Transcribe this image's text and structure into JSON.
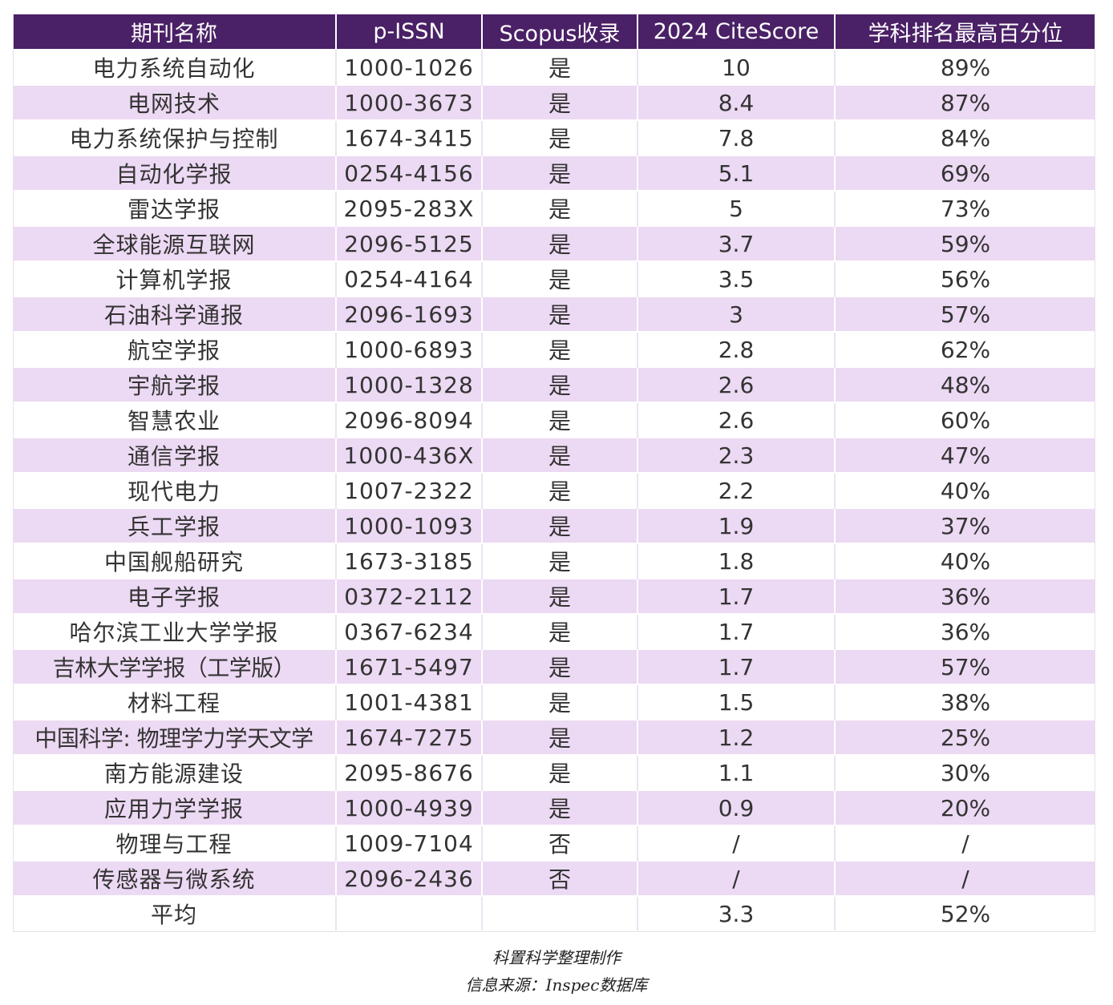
{
  "table": {
    "headers": [
      "期刊名称",
      "p-ISSN",
      "Scopus收录",
      "2024 CiteScore",
      "学科排名最高百分位"
    ],
    "rows": [
      [
        "电力系统自动化",
        "1000-1026",
        "是",
        "10",
        "89%"
      ],
      [
        "电网技术",
        "1000-3673",
        "是",
        "8.4",
        "87%"
      ],
      [
        "电力系统保护与控制",
        "1674-3415",
        "是",
        "7.8",
        "84%"
      ],
      [
        "自动化学报",
        "0254-4156",
        "是",
        "5.1",
        "69%"
      ],
      [
        "雷达学报",
        "2095-283X",
        "是",
        "5",
        "73%"
      ],
      [
        "全球能源互联网",
        "2096-5125",
        "是",
        "3.7",
        "59%"
      ],
      [
        "计算机学报",
        "0254-4164",
        "是",
        "3.5",
        "56%"
      ],
      [
        "石油科学通报",
        "2096-1693",
        "是",
        "3",
        "57%"
      ],
      [
        "航空学报",
        "1000-6893",
        "是",
        "2.8",
        "62%"
      ],
      [
        "宇航学报",
        "1000-1328",
        "是",
        "2.6",
        "48%"
      ],
      [
        "智慧农业",
        "2096-8094",
        "是",
        "2.6",
        "60%"
      ],
      [
        "通信学报",
        "1000-436X",
        "是",
        "2.3",
        "47%"
      ],
      [
        "现代电力",
        "1007-2322",
        "是",
        "2.2",
        "40%"
      ],
      [
        "兵工学报",
        "1000-1093",
        "是",
        "1.9",
        "37%"
      ],
      [
        "中国舰船研究",
        "1673-3185",
        "是",
        "1.8",
        "40%"
      ],
      [
        "电子学报",
        "0372-2112",
        "是",
        "1.7",
        "36%"
      ],
      [
        "哈尔滨工业大学学报",
        "0367-6234",
        "是",
        "1.7",
        "36%"
      ],
      [
        "吉林大学学报（工学版）",
        "1671-5497",
        "是",
        "1.7",
        "57%"
      ],
      [
        "材料工程",
        "1001-4381",
        "是",
        "1.5",
        "38%"
      ],
      [
        "中国科学: 物理学力学天文学",
        "1674-7275",
        "是",
        "1.2",
        "25%"
      ],
      [
        "南方能源建设",
        "2095-8676",
        "是",
        "1.1",
        "30%"
      ],
      [
        "应用力学学报",
        "1000-4939",
        "是",
        "0.9",
        "20%"
      ],
      [
        "物理与工程",
        "1009-7104",
        "否",
        "/",
        "/"
      ],
      [
        "传感器与微系统",
        "2096-2436",
        "否",
        "/",
        "/"
      ]
    ],
    "footer": [
      "平均",
      "",
      "",
      "3.3",
      "52%"
    ]
  },
  "captions": {
    "line1": "科置科学整理制作",
    "line2": "信息来源：Inspec数据库"
  },
  "colors": {
    "header_bg": "#4a2066",
    "stripe": "#ecd9f3"
  }
}
